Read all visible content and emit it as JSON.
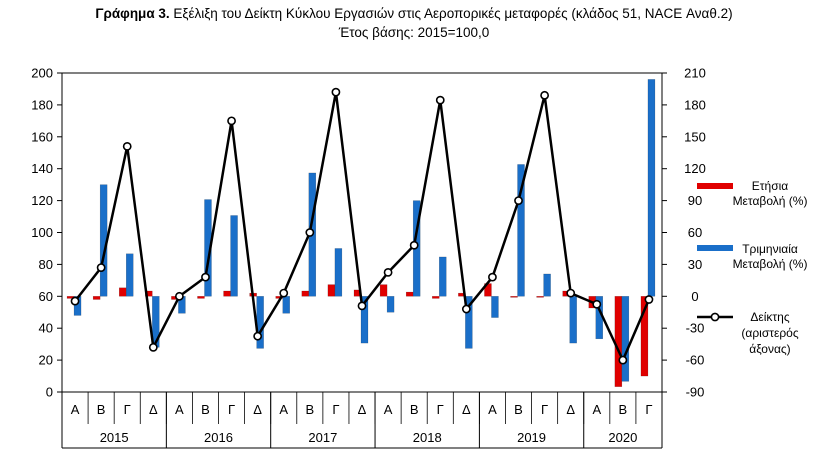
{
  "title": {
    "prefix": "Γράφημα 3.",
    "main": " Εξέλιξη του Δείκτη Κύκλου Εργασιών στις Αεροπορικές μεταφορές (κλάδος 51, NACE Αναθ.2)",
    "subtitle": "Έτος βάσης: 2015=100,0"
  },
  "chart_data": {
    "type": "bar",
    "categories": [
      "Α",
      "Β",
      "Γ",
      "Δ",
      "Α",
      "Β",
      "Γ",
      "Δ",
      "Α",
      "Β",
      "Γ",
      "Δ",
      "Α",
      "Β",
      "Γ",
      "Δ",
      "Α",
      "Β",
      "Γ",
      "Δ",
      "Α",
      "Β",
      "Γ"
    ],
    "years": [
      {
        "label": "2015",
        "quarters": 4
      },
      {
        "label": "2016",
        "quarters": 4
      },
      {
        "label": "2017",
        "quarters": 4
      },
      {
        "label": "2018",
        "quarters": 4
      },
      {
        "label": "2019",
        "quarters": 4
      },
      {
        "label": "2020",
        "quarters": 3
      }
    ],
    "series": [
      {
        "name": "Ετήσια Μεταβολή (%)",
        "axis": "right",
        "color": "#e00000",
        "values": [
          -2,
          -3,
          8,
          5,
          -3,
          -2,
          5,
          3,
          -2,
          5,
          11,
          6,
          11,
          4,
          -2,
          3,
          12,
          -1,
          -1,
          5,
          -11,
          -85,
          -75
        ]
      },
      {
        "name": "Τριμηνιαία Μεταβολή (%)",
        "axis": "right",
        "color": "#1a6fc9",
        "values": [
          -18,
          105,
          40,
          -48,
          -16,
          91,
          76,
          -49,
          -16,
          116,
          45,
          -44,
          -15,
          90,
          37,
          -49,
          -20,
          124,
          21,
          -44,
          -40,
          -80,
          204
        ]
      },
      {
        "name": "Δείκτης (αριστερός άξονας)",
        "axis": "left",
        "color": "#000000",
        "values": [
          57,
          78,
          154,
          28,
          60,
          72,
          170,
          35,
          62,
          100,
          188,
          54,
          75,
          92,
          183,
          52,
          72,
          120,
          186,
          62,
          55,
          20,
          58
        ]
      }
    ],
    "y_left": {
      "min": 0,
      "max": 200,
      "step": 20,
      "ticks": [
        "0",
        "20",
        "40",
        "60",
        "80",
        "100",
        "120",
        "140",
        "160",
        "180",
        "200"
      ]
    },
    "y_right": {
      "min": -90,
      "max": 210,
      "step": 30,
      "ticks": [
        "-90",
        "-60",
        "-30",
        "0",
        "30",
        "60",
        "90",
        "120",
        "150",
        "180",
        "210"
      ]
    },
    "legend_position": "right",
    "grid": false
  },
  "legend": {
    "annual_line1": "Ετήσια",
    "annual_line2": "Μεταβολή (%)",
    "quarterly_line1": "Τριμηνιαία",
    "quarterly_line2": "Μεταβολή (%)",
    "index_line1": "Δείκτης",
    "index_line2": "(αριστερός",
    "index_line3": "άξονας)"
  }
}
